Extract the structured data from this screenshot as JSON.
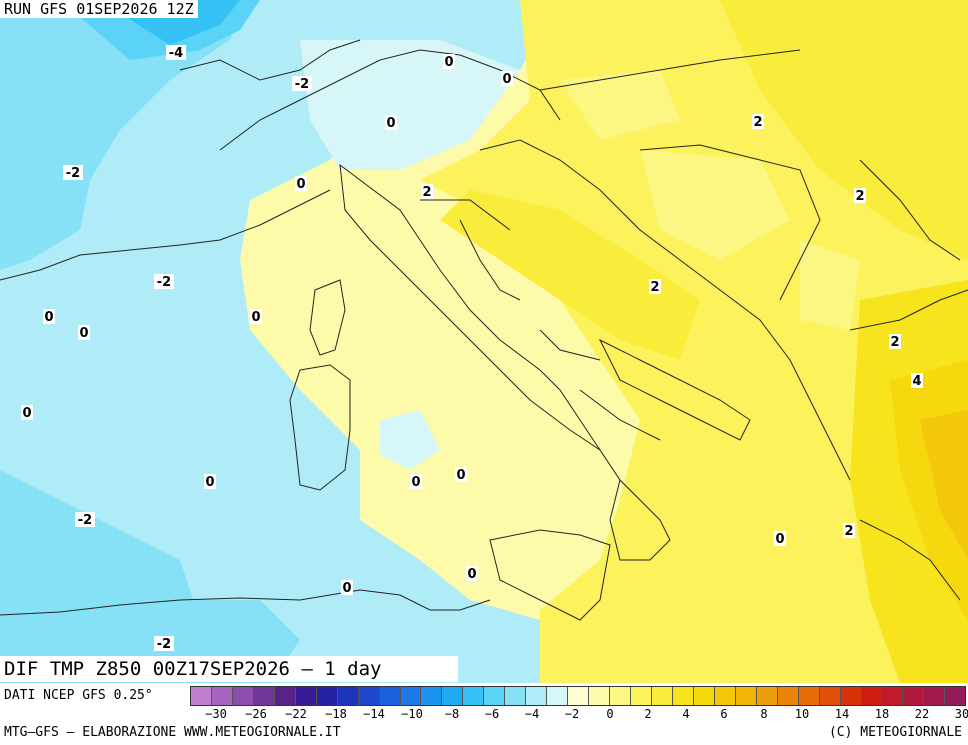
{
  "header": {
    "run_title": "RUN GFS 01SEP2026 12Z"
  },
  "field": {
    "title": "DIF TMP Z850 00Z17SEP2026 – 1 day"
  },
  "source": {
    "text": "DATI NCEP GFS 0.25°"
  },
  "footer": {
    "left": "MTG–GFS – ELABORAZIONE WWW.METEOGIORNALE.IT",
    "right": "(C) METEOGIORNALE"
  },
  "colorbar": {
    "colors": [
      "#c27fcf",
      "#a766be",
      "#8c4dac",
      "#72359b",
      "#5a2189",
      "#3b1b95",
      "#2622a6",
      "#1d34bb",
      "#1f49cc",
      "#1d60dc",
      "#1c79e6",
      "#1c92ef",
      "#20aaf4",
      "#35c1f6",
      "#5ad3f6",
      "#86e0f6",
      "#b0ecf7",
      "#d7f6f8",
      "#fefed0",
      "#fdfbaa",
      "#fcf783",
      "#fbf25c",
      "#f9ec3a",
      "#f7e41c",
      "#f5d80d",
      "#f3c80b",
      "#f1b50a",
      "#ee9e0a",
      "#eb8509",
      "#e66b09",
      "#e05009",
      "#d83209",
      "#cd1d12",
      "#c01a2b",
      "#b1193f",
      "#a11a4d",
      "#921b58"
    ],
    "ticks": [
      "−30",
      "−26",
      "−22",
      "−18",
      "−14",
      "−10",
      "−8",
      "−6",
      "−4",
      "−2",
      "0",
      "2",
      "4",
      "6",
      "8",
      "10",
      "14",
      "18",
      "22",
      "30"
    ]
  },
  "map_labels": [
    {
      "text": "-4"
    },
    {
      "text": "-2"
    },
    {
      "text": "-2"
    },
    {
      "text": "-2"
    },
    {
      "text": "-2"
    },
    {
      "text": "-2"
    },
    {
      "text": "0"
    },
    {
      "text": "0"
    },
    {
      "text": "0"
    },
    {
      "text": "0"
    },
    {
      "text": "0"
    },
    {
      "text": "0"
    },
    {
      "text": "0"
    },
    {
      "text": "0"
    },
    {
      "text": "0"
    },
    {
      "text": "0"
    },
    {
      "text": "0"
    },
    {
      "text": "0"
    },
    {
      "text": "0"
    },
    {
      "text": "0"
    },
    {
      "text": "2"
    },
    {
      "text": "2"
    },
    {
      "text": "2"
    },
    {
      "text": "2"
    },
    {
      "text": "2"
    },
    {
      "text": "2"
    },
    {
      "text": "4"
    }
  ]
}
